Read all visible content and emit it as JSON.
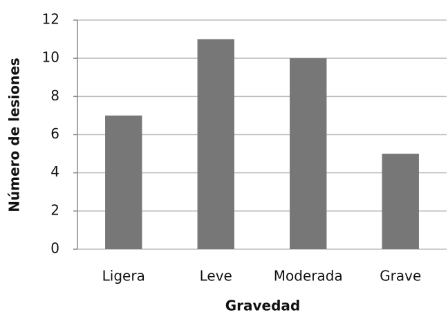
{
  "chart_data": {
    "type": "bar",
    "title": null,
    "x_label": "Gravedad",
    "y_label": "Número de lesiones",
    "categories": [
      "Ligera",
      "Leve",
      "Moderada",
      "Grave"
    ],
    "values": [
      7,
      11,
      10,
      5
    ],
    "color": "#777777",
    "ylim": [
      0,
      12
    ],
    "yticks": [
      0,
      2,
      4,
      6,
      8,
      10,
      12
    ],
    "grid": true
  }
}
